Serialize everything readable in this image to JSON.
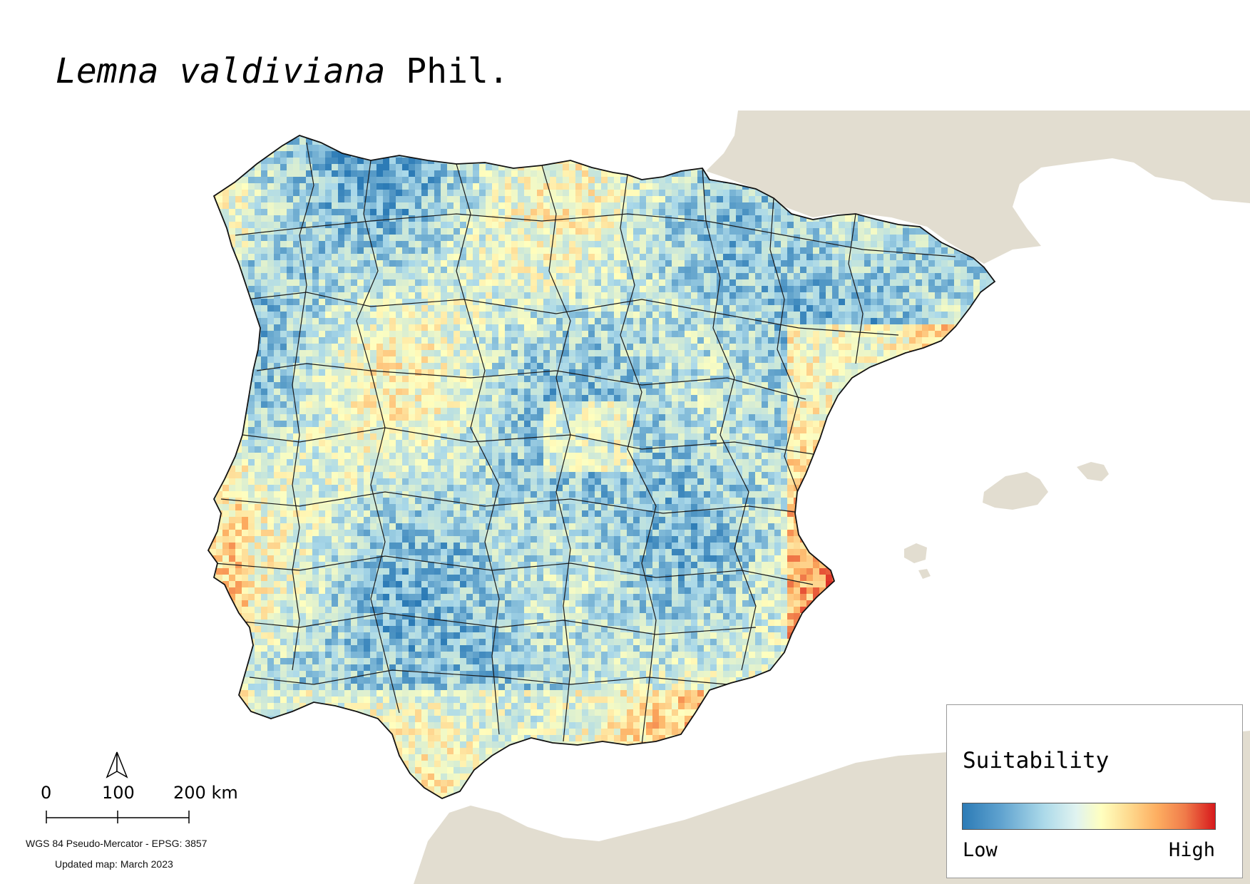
{
  "title": {
    "species": "Lemna valdiviana",
    "author": "Phil."
  },
  "legend": {
    "title": "Suitability",
    "low_label": "Low",
    "high_label": "High",
    "colors": [
      "#2c7bb6",
      "#abd9e9",
      "#ffffbf",
      "#fdae61",
      "#d7191c"
    ]
  },
  "scale_bar": {
    "labels": [
      "0",
      "100",
      "200 km"
    ]
  },
  "north_arrow": {
    "icon": "north-arrow-icon"
  },
  "crs_text": "WGS 84 Pseudo-Mercator  - EPSG: 3857",
  "updated_text": "Updated map: March 2023",
  "colors": {
    "land_background": "#e2ddd0",
    "sea": "#ffffff",
    "borders": "#1a1a1a"
  }
}
